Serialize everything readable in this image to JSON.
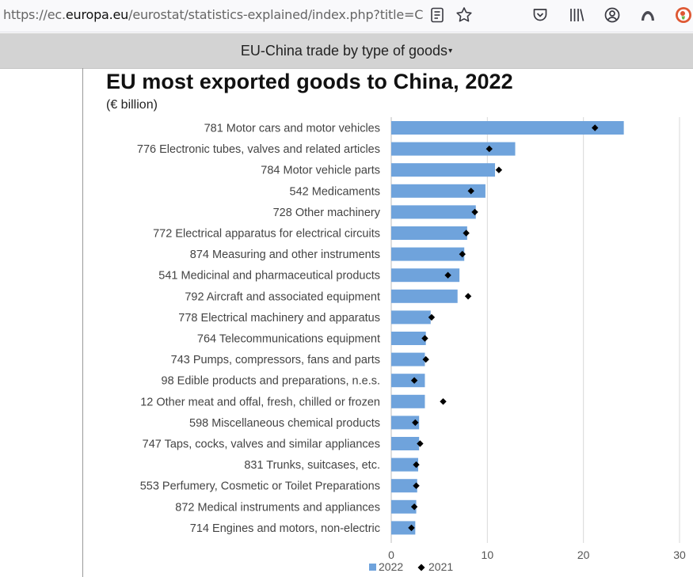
{
  "browser": {
    "url_prefix": "https://ec.",
    "url_domain": "europa.eu",
    "url_rest": "/eurostat/statistics-explained/index.php?title=Cł",
    "icons": [
      "reader-view-icon",
      "bookmark-star-icon",
      "pocket-icon",
      "library-icon",
      "account-icon",
      "extension-icon",
      "duckduckgo-icon"
    ]
  },
  "section": {
    "title": "EU-China trade by type of goods",
    "caret": "▾"
  },
  "chart_data": {
    "type": "bar",
    "orientation": "horizontal",
    "title": "EU most exported goods to China, 2022",
    "subtitle": "(€ billion)",
    "xlim": [
      0,
      30
    ],
    "xticks": [
      0,
      10,
      20,
      30
    ],
    "grid": true,
    "legend_position": "bottom",
    "colors": {
      "bar": "#6fa3dc",
      "marker": "#000000"
    },
    "categories": [
      "781 Motor cars and motor vehicles",
      "776 Electronic tubes, valves and related articles",
      "784 Motor vehicle parts",
      "542 Medicaments",
      "728 Other machinery",
      "772 Electrical apparatus for electrical circuits",
      "874 Measuring and other instruments",
      "541 Medicinal and pharmaceutical products",
      "792 Aircraft and associated equipment",
      "778 Electrical machinery and apparatus",
      "764 Telecommunications equipment",
      "743 Pumps, compressors, fans and parts",
      "98 Edible products and preparations, n.e.s.",
      "12 Other meat and offal, fresh, chilled or frozen",
      "598 Miscellaneous chemical products",
      "747 Taps, cocks, valves and similar appliances",
      "831 Trunks, suitcases, etc.",
      "553 Perfumery, Cosmetic or Toilet Preparations",
      "872 Medical instruments and appliances",
      "714 Engines and motors, non-electric"
    ],
    "series": [
      {
        "name": "2022",
        "marker": "bar",
        "values": [
          24.2,
          12.9,
          10.8,
          9.8,
          8.8,
          7.9,
          7.6,
          7.1,
          6.9,
          4.1,
          3.6,
          3.5,
          3.5,
          3.5,
          2.9,
          2.9,
          2.8,
          2.7,
          2.6,
          2.5
        ]
      },
      {
        "name": "2021",
        "marker": "diamond",
        "values": [
          21.2,
          10.2,
          11.2,
          8.3,
          8.7,
          7.8,
          7.4,
          5.9,
          8.0,
          4.2,
          3.5,
          3.6,
          2.4,
          5.4,
          2.5,
          3.0,
          2.6,
          2.6,
          2.4,
          2.1
        ]
      }
    ]
  }
}
